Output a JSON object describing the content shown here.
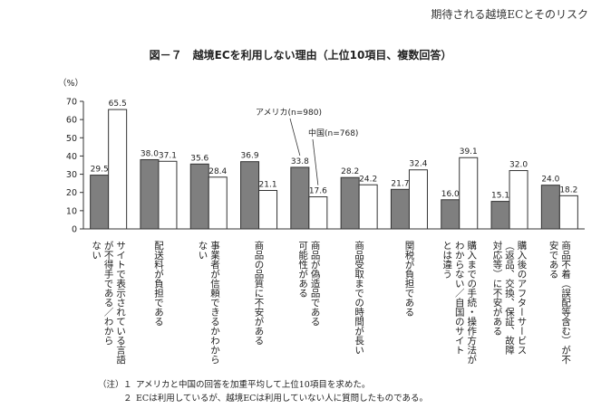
{
  "header": {
    "running_title": "期待される越境ECとそのリスク"
  },
  "figure": {
    "title": "図－７　越境ECを利用しない理由（上位10項目、複数回答）"
  },
  "chart_data": {
    "type": "bar",
    "ylabel": "（%）",
    "ylim": [
      0,
      70
    ],
    "yticks": [
      0,
      10,
      20,
      30,
      40,
      50,
      60,
      70
    ],
    "grid": false,
    "categories": [
      "サイトで表示されている言語が不得手である／わからない",
      "配送料が負担である",
      "事業者が信頼できるかわからない",
      "商品の品質に不安がある",
      "商品が偽造品である可能性がある",
      "商品受取までの時間が長い",
      "関税が負担である",
      "購入までの手続・操作方法がわからない／自国のサイトとは違う",
      "購入後のアフターサービス（返品、交換、保証、故障対応等）に不安がある",
      "商品不着（誤配等含む）が不安である"
    ],
    "category_lines": [
      [
        "サイトで表示されている言語",
        "が不得手である／わから",
        "ない"
      ],
      [
        "配送料が負担である"
      ],
      [
        "事業者が信頼できるかわから",
        "ない"
      ],
      [
        "商品の品質に不安がある"
      ],
      [
        "商品が偽造品である",
        "可能性がある"
      ],
      [
        "商品受取までの時間が長い"
      ],
      [
        "関税が負担である"
      ],
      [
        "購入までの手続・操作方法が",
        "わからない／自国のサイト",
        "とは違う"
      ],
      [
        "購入後のアフターサービス",
        "（返品、交換、保証、故障",
        "対応等）に不安がある"
      ],
      [
        "商品不着（誤配等含む）が不",
        "安である"
      ]
    ],
    "series": [
      {
        "name": "アメリカ(n=980)",
        "color": "#7f7f7f",
        "values": [
          29.5,
          38.0,
          35.6,
          36.9,
          33.8,
          28.2,
          21.7,
          16.0,
          15.1,
          24.0
        ]
      },
      {
        "name": "中国(n=768)",
        "color": "#ffffff",
        "values": [
          65.5,
          37.1,
          28.4,
          21.1,
          17.6,
          24.2,
          32.4,
          39.1,
          32.0,
          18.2
        ]
      }
    ],
    "data_labels": [
      [
        "29.5",
        "38.0",
        "35.6",
        "36.9",
        "33.8",
        "28.2",
        "21.7",
        "16.0",
        "15.1",
        "24.0"
      ],
      [
        "65.5",
        "37.1",
        "28.4",
        "21.1",
        "17.6",
        "24.2",
        "32.4",
        "39.1",
        "32.0",
        "18.2"
      ]
    ],
    "legend_placement": "callout labels inside plot"
  },
  "notes": {
    "prefix": "（注）",
    "items": [
      {
        "num": "１",
        "text": "アメリカと中国の回答を加重平均して上位10項目を求めた。"
      },
      {
        "num": "２",
        "text": "ECは利用しているが、越境ECは利用していない人に質問したものである。"
      }
    ]
  }
}
